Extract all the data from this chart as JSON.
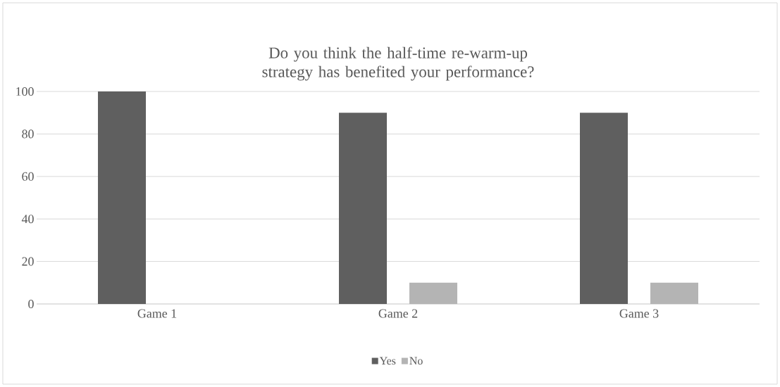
{
  "chart_data": {
    "type": "bar",
    "title": "Do you think the half-time re-warm-up strategy has benefited your performance?",
    "categories": [
      "Game 1",
      "Game 2",
      "Game 3"
    ],
    "series": [
      {
        "name": "Yes",
        "color": "#5f5f5f",
        "values": [
          100,
          90,
          90
        ]
      },
      {
        "name": "No",
        "color": "#b4b4b4",
        "values": [
          0,
          10,
          10
        ]
      }
    ],
    "ylim": [
      0,
      100
    ],
    "yticks": [
      0,
      20,
      40,
      60,
      80,
      100
    ],
    "grid": "y",
    "legend": "bottom"
  }
}
